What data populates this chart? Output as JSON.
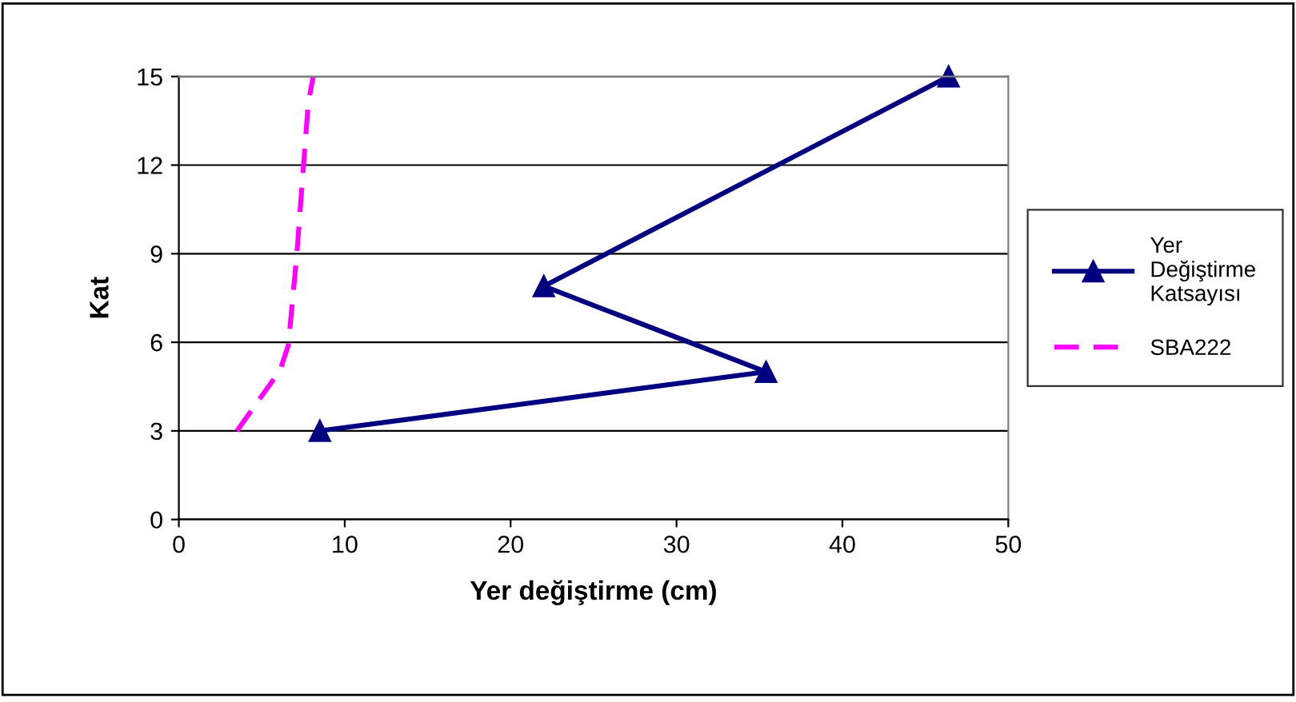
{
  "chart_data": {
    "type": "line",
    "xlabel": "Yer değiştirme (cm)",
    "ylabel": "Kat",
    "xlim": [
      0,
      50
    ],
    "xticks": [
      0,
      10,
      20,
      30,
      40,
      50
    ],
    "ylim": [
      0,
      15
    ],
    "yticks": [
      0,
      3,
      6,
      9,
      12,
      15
    ],
    "grid": "y",
    "legend": "right",
    "series": [
      {
        "name": "Yer Değiştirme Katsayısı",
        "color": "#000080",
        "marker": "triangle",
        "line_style": "solid",
        "x": [
          46.4,
          22.0,
          35.4,
          8.5
        ],
        "values": [
          15,
          7.9,
          5,
          3
        ]
      },
      {
        "name": "SBA222",
        "color": "#ff00ff",
        "marker": "none",
        "line_style": "dashed",
        "x": [
          3.5,
          6.1,
          6.6,
          7.1,
          7.8,
          8.1
        ],
        "values": [
          3,
          5.05,
          5.9,
          8.9,
          14.1,
          15
        ]
      }
    ]
  }
}
